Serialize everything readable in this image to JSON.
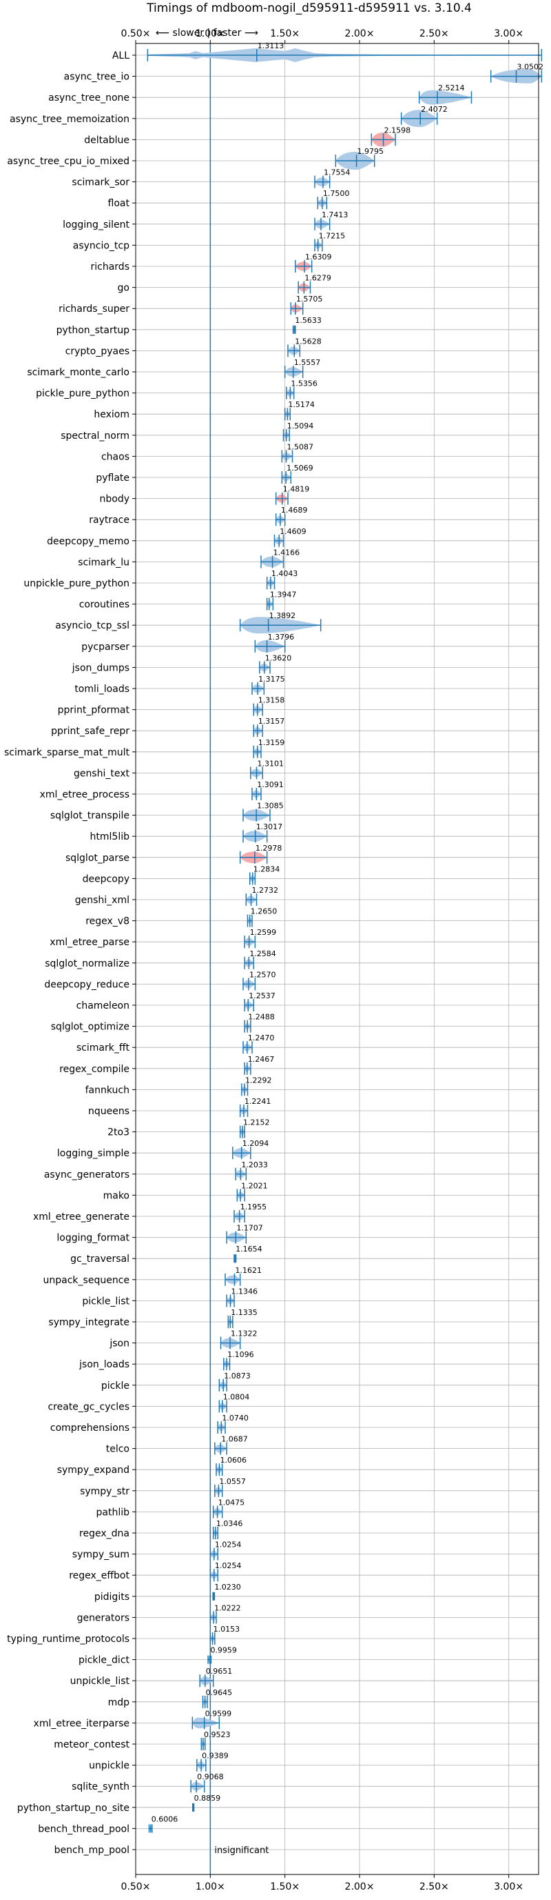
{
  "chart_data": {
    "type": "violin",
    "title": "Timings of mdboom-nogil_d595911-d595911 vs. 3.10.4",
    "direction_label": "⟵ slower | faster ⟶",
    "xlim": [
      0.5,
      3.2
    ],
    "xticks": [
      0.5,
      1.0,
      1.5,
      2.0,
      2.5,
      3.0
    ],
    "xtick_labels": [
      "0.50×",
      "1.00×",
      "1.50×",
      "2.00×",
      "2.50×",
      "3.00×"
    ],
    "reference_line": 1.0,
    "grid": true,
    "colors": {
      "faster": "#a9c8e6",
      "slower": "#f4a7a7",
      "line": "#1f77b4",
      "grid": "#b0b0b0"
    },
    "benchmarks": [
      {
        "name": "ALL",
        "value": 1.3113,
        "label": "1.3113",
        "min": 0.58,
        "max": 3.22,
        "color": "blue",
        "shape": "all"
      },
      {
        "name": "async_tree_io",
        "value": 3.0502,
        "label": "3.0502",
        "min": 2.88,
        "max": 3.22,
        "color": "blue",
        "shape": "skew_right"
      },
      {
        "name": "async_tree_none",
        "value": 2.5214,
        "label": "2.5214",
        "min": 2.4,
        "max": 2.75,
        "color": "blue",
        "shape": "skew_left"
      },
      {
        "name": "async_tree_memoization",
        "value": 2.4072,
        "label": "2.4072",
        "min": 2.28,
        "max": 2.52,
        "color": "blue",
        "shape": "round"
      },
      {
        "name": "deltablue",
        "value": 2.1598,
        "label": "2.1598",
        "min": 2.08,
        "max": 2.24,
        "color": "red",
        "shape": "round"
      },
      {
        "name": "async_tree_cpu_io_mixed",
        "value": 1.9795,
        "label": "1.9795",
        "min": 1.84,
        "max": 2.1,
        "color": "blue",
        "shape": "round"
      },
      {
        "name": "scimark_sor",
        "value": 1.7554,
        "label": "1.7554",
        "min": 1.7,
        "max": 1.8,
        "color": "blue",
        "shape": "normal"
      },
      {
        "name": "float",
        "value": 1.75,
        "label": "1.7500",
        "min": 1.72,
        "max": 1.78,
        "color": "blue",
        "shape": "normal"
      },
      {
        "name": "logging_silent",
        "value": 1.7413,
        "label": "1.7413",
        "min": 1.7,
        "max": 1.8,
        "color": "blue",
        "shape": "normal"
      },
      {
        "name": "asyncio_tcp",
        "value": 1.7215,
        "label": "1.7215",
        "min": 1.7,
        "max": 1.75,
        "color": "blue",
        "shape": "normal"
      },
      {
        "name": "richards",
        "value": 1.6309,
        "label": "1.6309",
        "min": 1.57,
        "max": 1.68,
        "color": "red",
        "shape": "normal"
      },
      {
        "name": "go",
        "value": 1.6279,
        "label": "1.6279",
        "min": 1.59,
        "max": 1.67,
        "color": "red",
        "shape": "normal"
      },
      {
        "name": "richards_super",
        "value": 1.5705,
        "label": "1.5705",
        "min": 1.54,
        "max": 1.62,
        "color": "red",
        "shape": "normal"
      },
      {
        "name": "python_startup",
        "value": 1.5633,
        "label": "1.5633",
        "min": 1.555,
        "max": 1.57,
        "color": "blue",
        "shape": "narrow"
      },
      {
        "name": "crypto_pyaes",
        "value": 1.5628,
        "label": "1.5628",
        "min": 1.52,
        "max": 1.6,
        "color": "blue",
        "shape": "normal"
      },
      {
        "name": "scimark_monte_carlo",
        "value": 1.5557,
        "label": "1.5557",
        "min": 1.5,
        "max": 1.62,
        "color": "blue",
        "shape": "normal"
      },
      {
        "name": "pickle_pure_python",
        "value": 1.5356,
        "label": "1.5356",
        "min": 1.51,
        "max": 1.56,
        "color": "blue",
        "shape": "normal"
      },
      {
        "name": "hexiom",
        "value": 1.5174,
        "label": "1.5174",
        "min": 1.5,
        "max": 1.535,
        "color": "blue",
        "shape": "normal"
      },
      {
        "name": "spectral_norm",
        "value": 1.5094,
        "label": "1.5094",
        "min": 1.49,
        "max": 1.53,
        "color": "blue",
        "shape": "normal"
      },
      {
        "name": "chaos",
        "value": 1.5087,
        "label": "1.5087",
        "min": 1.48,
        "max": 1.55,
        "color": "blue",
        "shape": "normal"
      },
      {
        "name": "pyflate",
        "value": 1.5069,
        "label": "1.5069",
        "min": 1.48,
        "max": 1.54,
        "color": "blue",
        "shape": "normal"
      },
      {
        "name": "nbody",
        "value": 1.4819,
        "label": "1.4819",
        "min": 1.44,
        "max": 1.52,
        "color": "red",
        "shape": "normal"
      },
      {
        "name": "raytrace",
        "value": 1.4689,
        "label": "1.4689",
        "min": 1.44,
        "max": 1.5,
        "color": "blue",
        "shape": "normal"
      },
      {
        "name": "deepcopy_memo",
        "value": 1.4609,
        "label": "1.4609",
        "min": 1.43,
        "max": 1.49,
        "color": "blue",
        "shape": "normal"
      },
      {
        "name": "scimark_lu",
        "value": 1.4166,
        "label": "1.4166",
        "min": 1.34,
        "max": 1.49,
        "color": "blue",
        "shape": "normal"
      },
      {
        "name": "unpickle_pure_python",
        "value": 1.4043,
        "label": "1.4043",
        "min": 1.38,
        "max": 1.43,
        "color": "blue",
        "shape": "normal"
      },
      {
        "name": "coroutines",
        "value": 1.3947,
        "label": "1.3947",
        "min": 1.38,
        "max": 1.42,
        "color": "blue",
        "shape": "normal"
      },
      {
        "name": "asyncio_tcp_ssl",
        "value": 1.3892,
        "label": "1.3892",
        "min": 1.2,
        "max": 1.74,
        "color": "blue",
        "shape": "skew_left"
      },
      {
        "name": "pycparser",
        "value": 1.3796,
        "label": "1.3796",
        "min": 1.3,
        "max": 1.5,
        "color": "blue",
        "shape": "normal"
      },
      {
        "name": "json_dumps",
        "value": 1.362,
        "label": "1.3620",
        "min": 1.33,
        "max": 1.4,
        "color": "blue",
        "shape": "normal"
      },
      {
        "name": "tomli_loads",
        "value": 1.3175,
        "label": "1.3175",
        "min": 1.28,
        "max": 1.36,
        "color": "blue",
        "shape": "normal"
      },
      {
        "name": "pprint_pformat",
        "value": 1.3158,
        "label": "1.3158",
        "min": 1.29,
        "max": 1.35,
        "color": "blue",
        "shape": "normal"
      },
      {
        "name": "pprint_safe_repr",
        "value": 1.3157,
        "label": "1.3157",
        "min": 1.29,
        "max": 1.35,
        "color": "blue",
        "shape": "normal"
      },
      {
        "name": "scimark_sparse_mat_mult",
        "value": 1.3159,
        "label": "1.3159",
        "min": 1.29,
        "max": 1.34,
        "color": "blue",
        "shape": "normal"
      },
      {
        "name": "genshi_text",
        "value": 1.3101,
        "label": "1.3101",
        "min": 1.27,
        "max": 1.35,
        "color": "blue",
        "shape": "normal"
      },
      {
        "name": "xml_etree_process",
        "value": 1.3091,
        "label": "1.3091",
        "min": 1.28,
        "max": 1.34,
        "color": "blue",
        "shape": "normal"
      },
      {
        "name": "sqlglot_transpile",
        "value": 1.3085,
        "label": "1.3085",
        "min": 1.22,
        "max": 1.4,
        "color": "blue",
        "shape": "normal"
      },
      {
        "name": "html5lib",
        "value": 1.3017,
        "label": "1.3017",
        "min": 1.22,
        "max": 1.38,
        "color": "blue",
        "shape": "normal"
      },
      {
        "name": "sqlglot_parse",
        "value": 1.2978,
        "label": "1.2978",
        "min": 1.2,
        "max": 1.38,
        "color": "red",
        "shape": "normal"
      },
      {
        "name": "deepcopy",
        "value": 1.2834,
        "label": "1.2834",
        "min": 1.265,
        "max": 1.3,
        "color": "blue",
        "shape": "normal"
      },
      {
        "name": "genshi_xml",
        "value": 1.2732,
        "label": "1.2732",
        "min": 1.24,
        "max": 1.31,
        "color": "blue",
        "shape": "normal"
      },
      {
        "name": "regex_v8",
        "value": 1.265,
        "label": "1.2650",
        "min": 1.25,
        "max": 1.28,
        "color": "blue",
        "shape": "normal"
      },
      {
        "name": "xml_etree_parse",
        "value": 1.2599,
        "label": "1.2599",
        "min": 1.23,
        "max": 1.3,
        "color": "blue",
        "shape": "normal"
      },
      {
        "name": "sqlglot_normalize",
        "value": 1.2584,
        "label": "1.2584",
        "min": 1.23,
        "max": 1.29,
        "color": "blue",
        "shape": "normal"
      },
      {
        "name": "deepcopy_reduce",
        "value": 1.257,
        "label": "1.2570",
        "min": 1.22,
        "max": 1.3,
        "color": "blue",
        "shape": "normal"
      },
      {
        "name": "chameleon",
        "value": 1.2537,
        "label": "1.2537",
        "min": 1.23,
        "max": 1.29,
        "color": "blue",
        "shape": "normal"
      },
      {
        "name": "sqlglot_optimize",
        "value": 1.2488,
        "label": "1.2488",
        "min": 1.23,
        "max": 1.27,
        "color": "blue",
        "shape": "normal"
      },
      {
        "name": "scimark_fft",
        "value": 1.247,
        "label": "1.2470",
        "min": 1.22,
        "max": 1.28,
        "color": "blue",
        "shape": "normal"
      },
      {
        "name": "regex_compile",
        "value": 1.2467,
        "label": "1.2467",
        "min": 1.23,
        "max": 1.27,
        "color": "blue",
        "shape": "normal"
      },
      {
        "name": "fannkuch",
        "value": 1.2292,
        "label": "1.2292",
        "min": 1.21,
        "max": 1.25,
        "color": "blue",
        "shape": "normal"
      },
      {
        "name": "nqueens",
        "value": 1.2241,
        "label": "1.2241",
        "min": 1.2,
        "max": 1.25,
        "color": "blue",
        "shape": "normal"
      },
      {
        "name": "2to3",
        "value": 1.2152,
        "label": "1.2152",
        "min": 1.2,
        "max": 1.23,
        "color": "blue",
        "shape": "normal"
      },
      {
        "name": "logging_simple",
        "value": 1.2094,
        "label": "1.2094",
        "min": 1.15,
        "max": 1.27,
        "color": "blue",
        "shape": "normal"
      },
      {
        "name": "async_generators",
        "value": 1.2033,
        "label": "1.2033",
        "min": 1.17,
        "max": 1.24,
        "color": "blue",
        "shape": "normal"
      },
      {
        "name": "mako",
        "value": 1.2021,
        "label": "1.2021",
        "min": 1.18,
        "max": 1.23,
        "color": "blue",
        "shape": "normal"
      },
      {
        "name": "xml_etree_generate",
        "value": 1.1955,
        "label": "1.1955",
        "min": 1.16,
        "max": 1.23,
        "color": "blue",
        "shape": "normal"
      },
      {
        "name": "logging_format",
        "value": 1.1707,
        "label": "1.1707",
        "min": 1.11,
        "max": 1.24,
        "color": "blue",
        "shape": "normal"
      },
      {
        "name": "gc_traversal",
        "value": 1.1654,
        "label": "1.1654",
        "min": 1.16,
        "max": 1.172,
        "color": "blue",
        "shape": "narrow"
      },
      {
        "name": "unpack_sequence",
        "value": 1.1621,
        "label": "1.1621",
        "min": 1.1,
        "max": 1.2,
        "color": "blue",
        "shape": "normal"
      },
      {
        "name": "pickle_list",
        "value": 1.1346,
        "label": "1.1346",
        "min": 1.11,
        "max": 1.16,
        "color": "blue",
        "shape": "normal"
      },
      {
        "name": "sympy_integrate",
        "value": 1.1335,
        "label": "1.1335",
        "min": 1.12,
        "max": 1.15,
        "color": "blue",
        "shape": "normal"
      },
      {
        "name": "json",
        "value": 1.1322,
        "label": "1.1322",
        "min": 1.07,
        "max": 1.2,
        "color": "blue",
        "shape": "normal"
      },
      {
        "name": "json_loads",
        "value": 1.1096,
        "label": "1.1096",
        "min": 1.09,
        "max": 1.13,
        "color": "blue",
        "shape": "normal"
      },
      {
        "name": "pickle",
        "value": 1.0873,
        "label": "1.0873",
        "min": 1.06,
        "max": 1.11,
        "color": "blue",
        "shape": "normal"
      },
      {
        "name": "create_gc_cycles",
        "value": 1.0804,
        "label": "1.0804",
        "min": 1.06,
        "max": 1.11,
        "color": "blue",
        "shape": "normal"
      },
      {
        "name": "comprehensions",
        "value": 1.074,
        "label": "1.0740",
        "min": 1.05,
        "max": 1.1,
        "color": "blue",
        "shape": "normal"
      },
      {
        "name": "telco",
        "value": 1.0687,
        "label": "1.0687",
        "min": 1.03,
        "max": 1.11,
        "color": "blue",
        "shape": "normal"
      },
      {
        "name": "sympy_expand",
        "value": 1.0606,
        "label": "1.0606",
        "min": 1.04,
        "max": 1.08,
        "color": "blue",
        "shape": "normal"
      },
      {
        "name": "sympy_str",
        "value": 1.0557,
        "label": "1.0557",
        "min": 1.03,
        "max": 1.08,
        "color": "blue",
        "shape": "normal"
      },
      {
        "name": "pathlib",
        "value": 1.0475,
        "label": "1.0475",
        "min": 1.02,
        "max": 1.08,
        "color": "blue",
        "shape": "normal"
      },
      {
        "name": "regex_dna",
        "value": 1.0346,
        "label": "1.0346",
        "min": 1.02,
        "max": 1.05,
        "color": "blue",
        "shape": "normal"
      },
      {
        "name": "sympy_sum",
        "value": 1.0254,
        "label": "1.0254",
        "min": 1.0,
        "max": 1.05,
        "color": "blue",
        "shape": "normal"
      },
      {
        "name": "regex_effbot",
        "value": 1.0254,
        "label": "1.0254",
        "min": 1.0,
        "max": 1.05,
        "color": "blue",
        "shape": "normal"
      },
      {
        "name": "pidigits",
        "value": 1.023,
        "label": "1.0230",
        "min": 1.018,
        "max": 1.028,
        "color": "blue",
        "shape": "narrow"
      },
      {
        "name": "generators",
        "value": 1.0222,
        "label": "1.0222",
        "min": 1.0,
        "max": 1.04,
        "color": "blue",
        "shape": "normal"
      },
      {
        "name": "typing_runtime_protocols",
        "value": 1.0153,
        "label": "1.0153",
        "min": 1.0,
        "max": 1.03,
        "color": "blue",
        "shape": "normal"
      },
      {
        "name": "pickle_dict",
        "value": 0.9959,
        "label": "0.9959",
        "min": 0.985,
        "max": 1.005,
        "color": "blue",
        "shape": "narrow"
      },
      {
        "name": "unpickle_list",
        "value": 0.9651,
        "label": "0.9651",
        "min": 0.93,
        "max": 1.02,
        "color": "blue",
        "shape": "normal"
      },
      {
        "name": "mdp",
        "value": 0.9645,
        "label": "0.9645",
        "min": 0.95,
        "max": 0.98,
        "color": "blue",
        "shape": "normal"
      },
      {
        "name": "xml_etree_iterparse",
        "value": 0.9599,
        "label": "0.9599",
        "min": 0.88,
        "max": 1.06,
        "color": "blue",
        "shape": "skew_left"
      },
      {
        "name": "meteor_contest",
        "value": 0.9523,
        "label": "0.9523",
        "min": 0.94,
        "max": 0.965,
        "color": "blue",
        "shape": "normal"
      },
      {
        "name": "unpickle",
        "value": 0.9389,
        "label": "0.9389",
        "min": 0.91,
        "max": 0.97,
        "color": "blue",
        "shape": "normal"
      },
      {
        "name": "sqlite_synth",
        "value": 0.9068,
        "label": "0.9068",
        "min": 0.87,
        "max": 0.96,
        "color": "blue",
        "shape": "normal"
      },
      {
        "name": "python_startup_no_site",
        "value": 0.8859,
        "label": "0.8859",
        "min": 0.882,
        "max": 0.89,
        "color": "blue",
        "shape": "narrow"
      },
      {
        "name": "bench_thread_pool",
        "value": 0.6006,
        "label": "0.6006",
        "min": 0.59,
        "max": 0.61,
        "color": "blue",
        "shape": "narrow"
      },
      {
        "name": "bench_mp_pool",
        "value": null,
        "label": "insignificant",
        "min": null,
        "max": null,
        "color": "none",
        "shape": "none"
      }
    ]
  }
}
